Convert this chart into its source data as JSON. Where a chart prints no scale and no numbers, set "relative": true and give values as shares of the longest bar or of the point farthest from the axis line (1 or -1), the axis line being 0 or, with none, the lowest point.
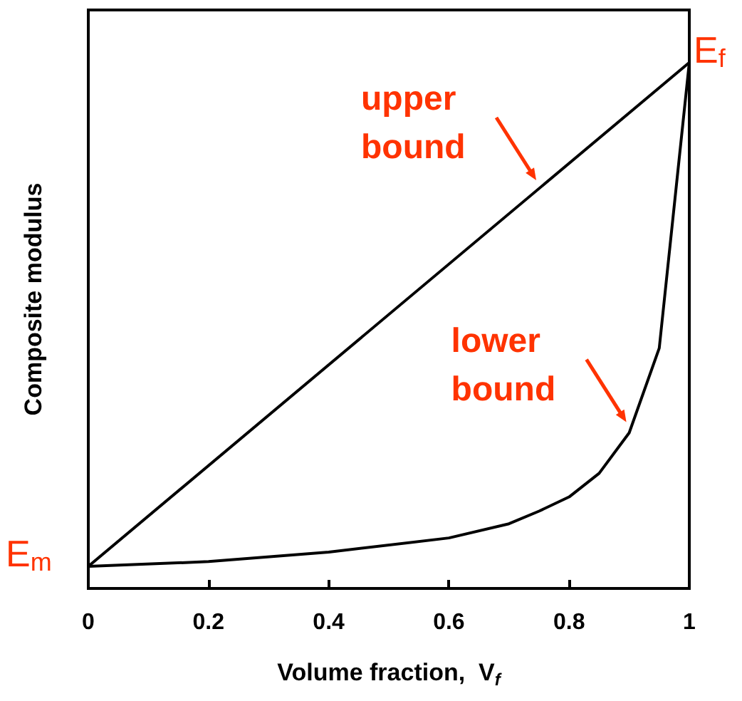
{
  "chart_data": {
    "type": "line",
    "relative": true,
    "xlabel": "Volume fraction,  V$_{f}$",
    "ylabel": "Composite modulus",
    "xlim": [
      0,
      1
    ],
    "xticks": [
      0,
      0.2,
      0.4,
      0.6,
      0.8,
      1
    ],
    "grid": false,
    "marker": "none",
    "line_style": "solid",
    "series": [
      {
        "color": "#000000",
        "x": [
          0,
          1
        ],
        "values": [
          0.042,
          1
        ]
      },
      {
        "color": "#000000",
        "x": [
          0,
          0.2,
          0.4,
          0.6,
          0.7,
          0.75,
          0.8,
          0.85,
          0.9,
          0.95,
          1
        ],
        "values": [
          0.042,
          0.051,
          0.069,
          0.096,
          0.123,
          0.147,
          0.174,
          0.219,
          0.296,
          0.457,
          1
        ]
      }
    ],
    "annotations": [
      {
        "text": "upper bound",
        "x": 0.75,
        "y": 0.76
      },
      {
        "text": "lower bound",
        "x": 0.9,
        "y": 0.3
      },
      {
        "text": "E$_{m}$",
        "x": 0,
        "y": 0.042
      },
      {
        "text": "E$_{f}$",
        "x": 1,
        "y": 1
      }
    ]
  }
}
